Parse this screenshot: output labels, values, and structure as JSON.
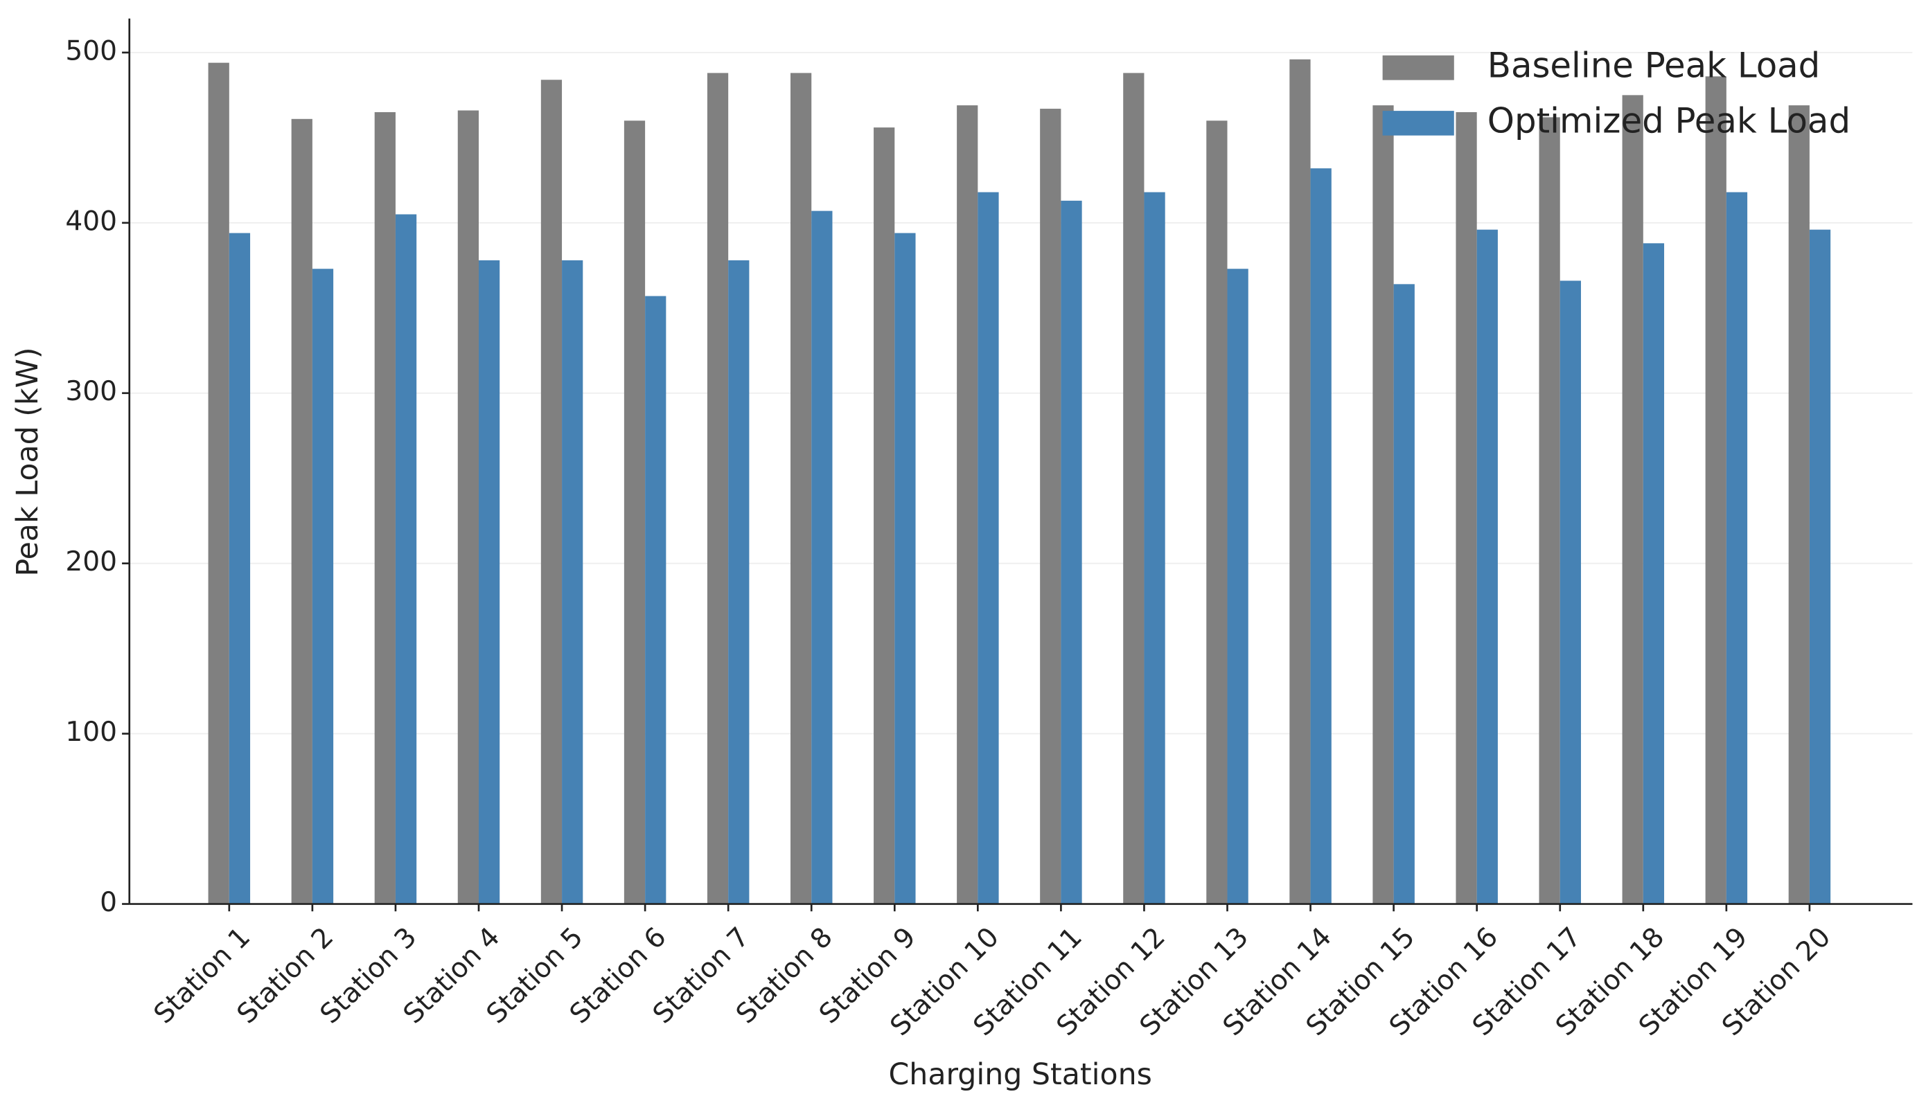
{
  "chart_data": {
    "type": "bar",
    "x_label": "Charging Stations",
    "y_label": "Peak Load (kW)",
    "categories": [
      "Station 1",
      "Station 2",
      "Station 3",
      "Station 4",
      "Station 5",
      "Station 6",
      "Station 7",
      "Station 8",
      "Station 9",
      "Station 10",
      "Station 11",
      "Station 12",
      "Station 13",
      "Station 14",
      "Station 15",
      "Station 16",
      "Station 17",
      "Station 18",
      "Station 19",
      "Station 20"
    ],
    "series": [
      {
        "name": "Baseline Peak Load",
        "color": "#808080",
        "values": [
          494,
          461,
          465,
          466,
          484,
          460,
          488,
          488,
          456,
          469,
          467,
          488,
          460,
          496,
          469,
          465,
          462,
          475,
          486,
          469
        ]
      },
      {
        "name": "Optimized Peak Load",
        "color": "#4682b4",
        "values": [
          394,
          373,
          405,
          378,
          378,
          357,
          378,
          407,
          394,
          418,
          413,
          418,
          373,
          432,
          364,
          396,
          366,
          388,
          418,
          396
        ]
      }
    ],
    "ylim": [
      0,
      520
    ],
    "yticks": [
      0,
      100,
      200,
      300,
      400,
      500
    ],
    "grid": true,
    "legend_position": "upper right"
  }
}
